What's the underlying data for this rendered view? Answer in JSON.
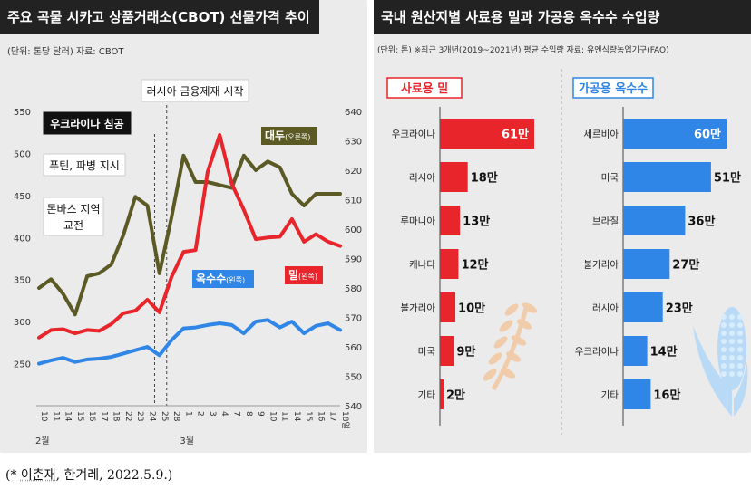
{
  "caption": {
    "prefix": "(* ",
    "author": "이춘재",
    "rest": ", 한겨레, 2022.5.9.)"
  },
  "left": {
    "title": "주요 곡물 시카고 상품거래소(CBOT) 선물가격 추이",
    "subtitle": "(단위: 톤당 달러)   자료: CBOT"
  },
  "right": {
    "title": "국내 원산지별 사료용 밀과 가공용 옥수수 수입량",
    "subtitle": "(단위: 톤)  ※최근 3개년(2019~2021년) 평균 수입량  자료: 유엔식량농업기구(FAO)"
  },
  "colors": {
    "wheat": "#e8252b",
    "corn": "#2f86e6",
    "soy": "#5b5a25",
    "panel": "#ebebeb",
    "dark": "#222222",
    "tan": "#f2c9a4",
    "lightblue": "#b9daf6"
  },
  "chart_data": [
    {
      "type": "line",
      "title": "주요 곡물 시카고 상품거래소(CBOT) 선물가격 추이",
      "x": [
        "10",
        "11",
        "14",
        "15",
        "16",
        "17",
        "18",
        "22",
        "23",
        "24",
        "25",
        "28",
        "1",
        "2",
        "3",
        "4",
        "7",
        "8",
        "9",
        "10",
        "11",
        "14",
        "15",
        "16",
        "17",
        "18일"
      ],
      "x_groups": [
        {
          "label": "2월",
          "start": 0
        },
        {
          "label": "3월",
          "start": 12
        }
      ],
      "ylim_left": [
        200,
        550
      ],
      "yticks_left": [
        250,
        300,
        350,
        400,
        450,
        500,
        550
      ],
      "ylim_right": [
        540,
        640
      ],
      "yticks_right": [
        540,
        550,
        560,
        570,
        580,
        590,
        600,
        610,
        620,
        630,
        640
      ],
      "series": [
        {
          "name": "대두(오른쪽)",
          "axis": "right",
          "color": "#5b5a25",
          "values": [
            580,
            583,
            578,
            571,
            584,
            585,
            588,
            598,
            611,
            608,
            585,
            604,
            625,
            616,
            616,
            615,
            614,
            625,
            620,
            623,
            621,
            612,
            608,
            612,
            612,
            612
          ]
        },
        {
          "name": "밀(왼쪽)",
          "axis": "left",
          "color": "#e8252b",
          "values": [
            281,
            290,
            291,
            286,
            290,
            289,
            297,
            310,
            313,
            326,
            311,
            353,
            383,
            385,
            478,
            522,
            464,
            433,
            398,
            400,
            401,
            422,
            395,
            404,
            395,
            390
          ]
        },
        {
          "name": "옥수수(왼쪽)",
          "axis": "left",
          "color": "#2f86e6",
          "values": [
            250,
            254,
            257,
            252,
            255,
            256,
            258,
            262,
            266,
            270,
            260,
            278,
            292,
            293,
            296,
            298,
            296,
            286,
            300,
            302,
            293,
            300,
            286,
            295,
            298,
            290
          ]
        }
      ],
      "annotations": [
        {
          "text": "우크라이나 침공",
          "at_index": 10,
          "style": "dark"
        },
        {
          "text": "러시아 금융제재 시작",
          "at_index": 11,
          "style": "light"
        },
        {
          "text": "푸틴, 파병 지시",
          "at_index": 8,
          "style": "light"
        },
        {
          "text": "돈바스 지역 교전",
          "at_index": 1,
          "style": "light"
        }
      ]
    },
    {
      "type": "bar",
      "title": "사료용 밀",
      "categories": [
        "우크라이나",
        "러시아",
        "루마니아",
        "캐나다",
        "불가리아",
        "미국",
        "기타"
      ],
      "values": [
        610000,
        180000,
        130000,
        120000,
        100000,
        90000,
        20000
      ],
      "labels": [
        "61만",
        "18만",
        "13만",
        "12만",
        "10만",
        "9만",
        "2만"
      ],
      "xlim": [
        0,
        610000
      ]
    },
    {
      "type": "bar",
      "title": "가공용 옥수수",
      "categories": [
        "세르비아",
        "미국",
        "브라질",
        "불가리아",
        "러시아",
        "우크라이나",
        "기타"
      ],
      "values": [
        600000,
        510000,
        360000,
        270000,
        230000,
        140000,
        160000
      ],
      "labels": [
        "60만",
        "51만",
        "36만",
        "27만",
        "23만",
        "14만",
        "16만"
      ],
      "xlim": [
        0,
        600000
      ]
    }
  ]
}
